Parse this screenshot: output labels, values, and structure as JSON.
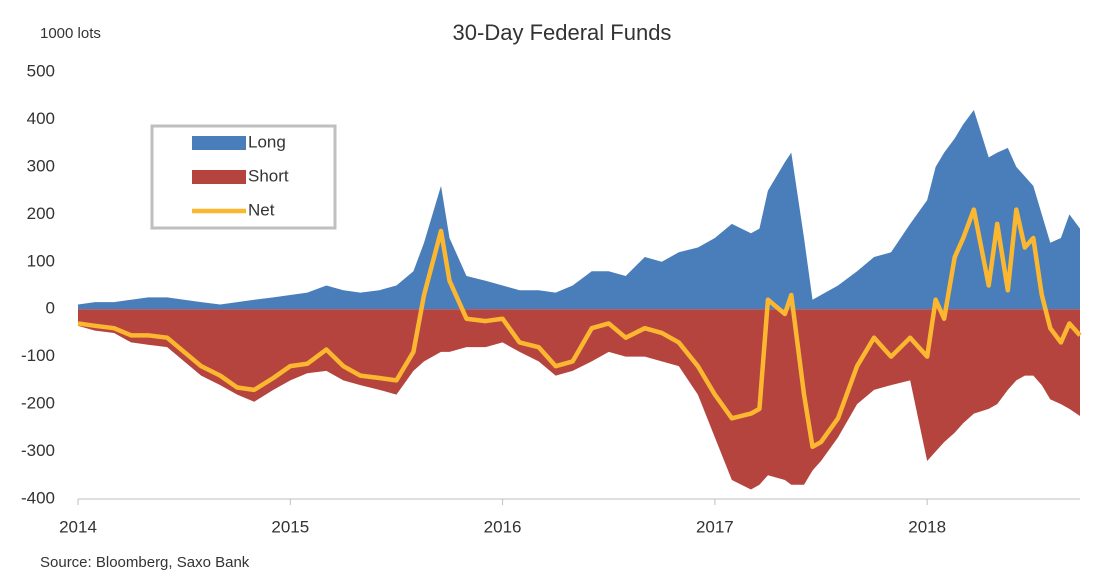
{
  "chart_data": {
    "type": "area",
    "title": "30-Day Federal Funds",
    "y_label": "1000 lots",
    "source": "Source: Bloomberg, Saxo Bank",
    "x": [
      2014.0,
      2014.08,
      2014.17,
      2014.25,
      2014.33,
      2014.42,
      2014.5,
      2014.58,
      2014.67,
      2014.75,
      2014.83,
      2014.92,
      2015.0,
      2015.08,
      2015.17,
      2015.25,
      2015.33,
      2015.42,
      2015.5,
      2015.58,
      2015.63,
      2015.71,
      2015.75,
      2015.83,
      2015.92,
      2016.0,
      2016.08,
      2016.17,
      2016.25,
      2016.33,
      2016.42,
      2016.5,
      2016.58,
      2016.67,
      2016.75,
      2016.83,
      2016.92,
      2017.0,
      2017.08,
      2017.17,
      2017.21,
      2017.25,
      2017.33,
      2017.36,
      2017.42,
      2017.46,
      2017.5,
      2017.58,
      2017.67,
      2017.75,
      2017.83,
      2017.92,
      2018.0,
      2018.04,
      2018.08,
      2018.13,
      2018.17,
      2018.22,
      2018.29,
      2018.33,
      2018.38,
      2018.42,
      2018.46,
      2018.5,
      2018.54,
      2018.58,
      2018.63,
      2018.67,
      2018.72
    ],
    "series": [
      {
        "name": "Long",
        "type": "area",
        "color": "#4a7ebb",
        "values": [
          10,
          15,
          15,
          20,
          25,
          25,
          20,
          15,
          10,
          15,
          20,
          25,
          30,
          35,
          50,
          40,
          35,
          40,
          50,
          80,
          140,
          260,
          150,
          70,
          60,
          50,
          40,
          40,
          35,
          50,
          80,
          80,
          70,
          110,
          100,
          120,
          130,
          150,
          180,
          160,
          170,
          250,
          310,
          330,
          150,
          20,
          30,
          50,
          80,
          110,
          120,
          180,
          230,
          300,
          330,
          360,
          390,
          420,
          320,
          330,
          340,
          300,
          280,
          260,
          200,
          140,
          150,
          200,
          170
        ]
      },
      {
        "name": "Short",
        "type": "area",
        "color": "#b5443f",
        "values": [
          -35,
          -45,
          -50,
          -70,
          -75,
          -80,
          -110,
          -140,
          -160,
          -180,
          -195,
          -170,
          -150,
          -135,
          -130,
          -150,
          -160,
          -170,
          -180,
          -130,
          -110,
          -90,
          -90,
          -80,
          -80,
          -70,
          -90,
          -110,
          -140,
          -130,
          -110,
          -90,
          -100,
          -100,
          -110,
          -120,
          -180,
          -270,
          -360,
          -380,
          -370,
          -350,
          -360,
          -370,
          -370,
          -340,
          -320,
          -270,
          -200,
          -170,
          -160,
          -150,
          -320,
          -300,
          -280,
          -260,
          -240,
          -220,
          -210,
          -200,
          -170,
          -150,
          -140,
          -140,
          -160,
          -190,
          -200,
          -210,
          -225
        ]
      },
      {
        "name": "Net",
        "type": "line",
        "color": "#fbb72f",
        "values": [
          -30,
          -35,
          -40,
          -55,
          -55,
          -60,
          -90,
          -120,
          -140,
          -165,
          -170,
          -145,
          -120,
          -115,
          -85,
          -120,
          -140,
          -145,
          -150,
          -90,
          30,
          165,
          60,
          -20,
          -25,
          -20,
          -70,
          -80,
          -120,
          -110,
          -40,
          -30,
          -60,
          -40,
          -50,
          -70,
          -120,
          -180,
          -230,
          -220,
          -210,
          20,
          -10,
          30,
          -180,
          -290,
          -280,
          -230,
          -120,
          -60,
          -100,
          -60,
          -100,
          20,
          -20,
          110,
          150,
          210,
          50,
          180,
          40,
          210,
          130,
          150,
          30,
          -40,
          -70,
          -30,
          -55
        ]
      }
    ],
    "xlim": [
      2014,
      2018.72
    ],
    "xticks": [
      2014,
      2015,
      2016,
      2017,
      2018
    ],
    "ylim": [
      -400,
      500
    ],
    "yticks": [
      -400,
      -300,
      -200,
      -100,
      0,
      100,
      200,
      300,
      400,
      500
    ],
    "grid": false,
    "legend": "upper left"
  }
}
